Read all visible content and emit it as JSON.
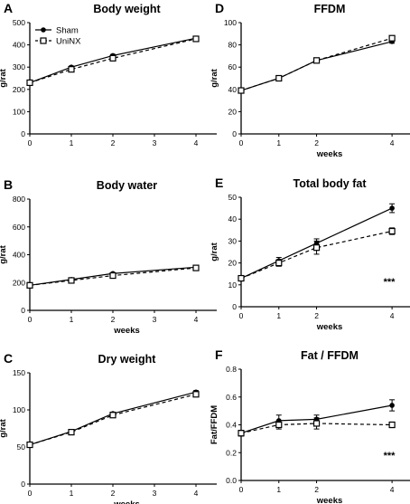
{
  "chart_data": [
    {
      "letter": "A",
      "title": "Body weight",
      "type": "line",
      "x": [
        0,
        1,
        2,
        4
      ],
      "xlabel": "",
      "ylabel": "g/rat",
      "xlim": [
        0,
        4.5
      ],
      "ylim": [
        0,
        500
      ],
      "xticks": [
        "0",
        "1",
        "2",
        "3",
        "4"
      ],
      "yticks": [
        "0",
        "100",
        "200",
        "300",
        "400",
        "500"
      ],
      "legend": {
        "position": "top-left",
        "entries": [
          "Sham",
          "UniNX"
        ]
      },
      "series": [
        {
          "name": "Sham",
          "values": [
            230,
            300,
            352,
            430
          ],
          "errors": [
            5,
            5,
            5,
            5
          ]
        },
        {
          "name": "UniNX",
          "values": [
            230,
            290,
            340,
            427
          ],
          "errors": [
            5,
            5,
            5,
            5
          ]
        }
      ],
      "annotation": ""
    },
    {
      "letter": "B",
      "title": "Body water",
      "type": "line",
      "x": [
        0,
        1,
        2,
        4
      ],
      "xlabel": "weeks",
      "ylabel": "g/rat",
      "xlim": [
        0,
        4.5
      ],
      "ylim": [
        0,
        800
      ],
      "xticks": [
        "0",
        "1",
        "2",
        "3",
        "4"
      ],
      "yticks": [
        "0",
        "200",
        "400",
        "600",
        "800"
      ],
      "series": [
        {
          "name": "Sham",
          "values": [
            180,
            222,
            265,
            310
          ],
          "errors": [
            6,
            6,
            6,
            6
          ]
        },
        {
          "name": "UniNX",
          "values": [
            180,
            215,
            250,
            305
          ],
          "errors": [
            6,
            6,
            6,
            6
          ]
        }
      ],
      "annotation": ""
    },
    {
      "letter": "C",
      "title": "Dry weight",
      "type": "line",
      "x": [
        0,
        1,
        2,
        4
      ],
      "xlabel": "weeks",
      "ylabel": "g/rat",
      "xlim": [
        0,
        4.5
      ],
      "ylim": [
        0,
        150
      ],
      "xticks": [
        "0",
        "1",
        "2",
        "3",
        "4"
      ],
      "yticks": [
        "0",
        "50",
        "100",
        "150"
      ],
      "series": [
        {
          "name": "Sham",
          "values": [
            53,
            71,
            95,
            124
          ],
          "errors": [
            2,
            2,
            2,
            2
          ]
        },
        {
          "name": "UniNX",
          "values": [
            53,
            70,
            93,
            121
          ],
          "errors": [
            2,
            2,
            2,
            2
          ]
        }
      ],
      "annotation": ""
    },
    {
      "letter": "D",
      "title": "FFDM",
      "type": "line",
      "x": [
        0,
        1,
        2,
        4
      ],
      "xlabel": "weeks",
      "ylabel": "g/rat",
      "xlim": [
        0,
        4.5
      ],
      "ylim": [
        0,
        100
      ],
      "xticks": [
        "0",
        "1",
        "2",
        "4"
      ],
      "yticks": [
        "0",
        "20",
        "40",
        "60",
        "80",
        "100"
      ],
      "series": [
        {
          "name": "Sham",
          "values": [
            39,
            50,
            66,
            83
          ],
          "errors": [
            1.5,
            1.5,
            1.5,
            1.5
          ]
        },
        {
          "name": "UniNX",
          "values": [
            39,
            50,
            66,
            86
          ],
          "errors": [
            1.5,
            1.5,
            1.5,
            1.5
          ]
        }
      ],
      "annotation": ""
    },
    {
      "letter": "E",
      "title": "Total body fat",
      "type": "line",
      "x": [
        0,
        1,
        2,
        4
      ],
      "xlabel": "weeks",
      "ylabel": "g/rat",
      "xlim": [
        0,
        4.5
      ],
      "ylim": [
        0,
        50
      ],
      "xticks": [
        "0",
        "1",
        "2",
        "4"
      ],
      "yticks": [
        "0",
        "10",
        "20",
        "30",
        "40",
        "50"
      ],
      "series": [
        {
          "name": "Sham",
          "values": [
            13,
            21,
            29,
            45
          ],
          "errors": [
            1,
            1.5,
            2,
            2
          ]
        },
        {
          "name": "UniNX",
          "values": [
            13,
            20,
            27,
            34.5
          ],
          "errors": [
            1,
            1.5,
            3,
            1.5
          ]
        }
      ],
      "annotation": "***"
    },
    {
      "letter": "F",
      "title": "Fat / FFDM",
      "type": "line",
      "x": [
        0,
        1,
        2,
        4
      ],
      "xlabel": "weeks",
      "ylabel": "Fat/FFDM",
      "xlim": [
        0,
        4.5
      ],
      "ylim": [
        0,
        0.8
      ],
      "xticks": [
        "0",
        "1",
        "2",
        "4"
      ],
      "yticks": [
        "0.0",
        "0.2",
        "0.4",
        "0.6",
        "0.8"
      ],
      "series": [
        {
          "name": "Sham",
          "values": [
            0.34,
            0.43,
            0.44,
            0.54
          ],
          "errors": [
            0.02,
            0.04,
            0.03,
            0.04
          ]
        },
        {
          "name": "UniNX",
          "values": [
            0.34,
            0.4,
            0.41,
            0.4
          ],
          "errors": [
            0.02,
            0.03,
            0.04,
            0.02
          ]
        }
      ],
      "annotation": "***"
    }
  ]
}
